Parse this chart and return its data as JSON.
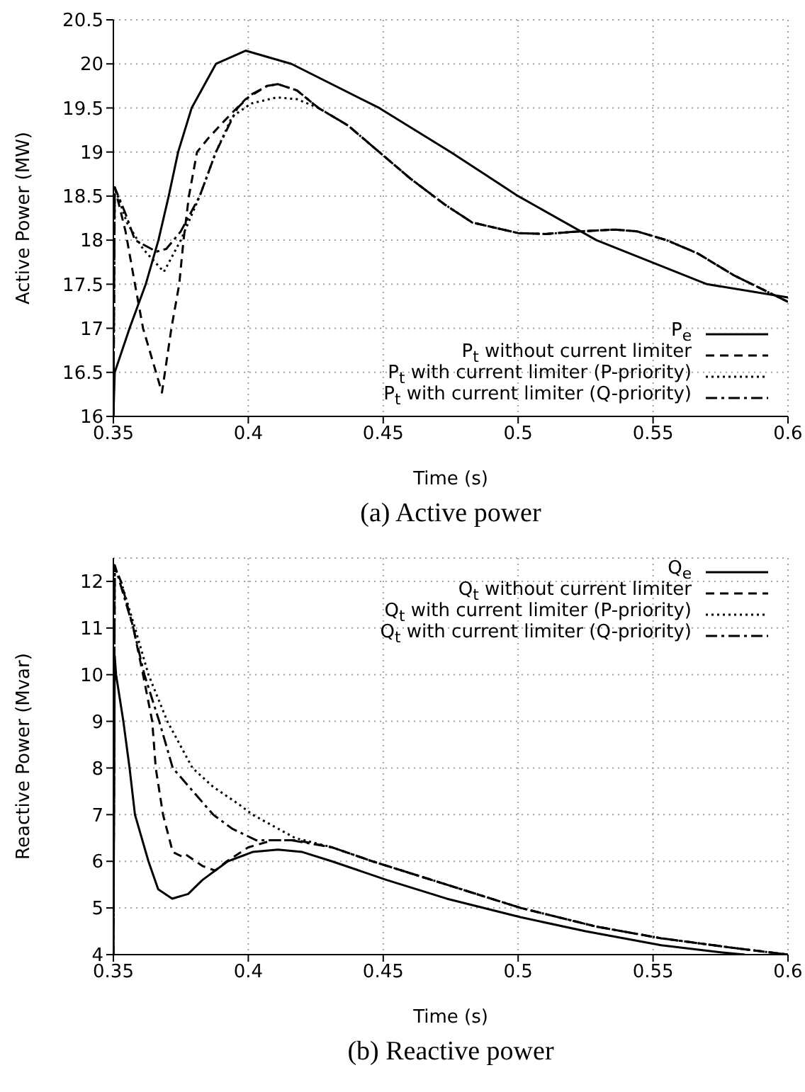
{
  "chart_data": [
    {
      "type": "line",
      "title": "(a) Active power",
      "xlabel": "Time (s)",
      "ylabel": "Active Power (MW)",
      "xlim": [
        0.35,
        0.6
      ],
      "xticks": [
        0.35,
        0.4,
        0.45,
        0.5,
        0.55,
        0.6
      ],
      "ylim": [
        16,
        20.5
      ],
      "yticks": [
        16,
        16.5,
        17,
        17.5,
        18,
        18.5,
        19,
        19.5,
        20,
        20.5
      ],
      "grid": true,
      "legend": "bottom right",
      "marker": "none",
      "series": [
        {
          "name": "P$_{e}$",
          "color": "#000000",
          "line_style": "solid",
          "x": [
            0.35,
            0.3505,
            0.356,
            0.362,
            0.3667,
            0.3705,
            0.374,
            0.379,
            0.388,
            0.399,
            0.416,
            0.4485,
            0.475,
            0.5,
            0.529,
            0.57,
            0.6
          ],
          "values": [
            16,
            16.5,
            17,
            17.5,
            18,
            18.5,
            19,
            19.5,
            20,
            20.15,
            20,
            19.5,
            19,
            18.5,
            18,
            17.5,
            17.35
          ]
        },
        {
          "name": "P$_{t}$ without current limiter",
          "color": "#000000",
          "line_style": "dashed",
          "x": [
            0.35,
            0.3505,
            0.3545,
            0.358,
            0.361,
            0.368,
            0.3715,
            0.3744,
            0.376,
            0.378,
            0.381,
            0.385,
            0.391,
            0.399,
            0.407,
            0.411,
            0.418,
            0.426,
            0.437,
            0.4485,
            0.46,
            0.473,
            0.483,
            0.5,
            0.51,
            0.523,
            0.536,
            0.544,
            0.555,
            0.5665,
            0.58,
            0.6
          ],
          "values": [
            16,
            18.6,
            18.1,
            17.5,
            17,
            16.27,
            17,
            17.5,
            18,
            18.5,
            19,
            19.15,
            19.35,
            19.6,
            19.75,
            19.77,
            19.7,
            19.5,
            19.3,
            19,
            18.7,
            18.4,
            18.2,
            18.08,
            18.07,
            18.1,
            18.12,
            18.1,
            18,
            17.85,
            17.6,
            17.3
          ]
        },
        {
          "name": "P$_{t}$ with current limiter (P-priority)",
          "color": "#000000",
          "line_style": "dotted",
          "x": [
            0.35,
            0.3505,
            0.355,
            0.361,
            0.3687,
            0.375,
            0.382,
            0.388,
            0.394,
            0.401,
            0.4105,
            0.418,
            0.426,
            0.437,
            0.4485,
            0.46,
            0.473,
            0.483,
            0.5,
            0.51,
            0.523,
            0.536,
            0.544,
            0.555,
            0.5665,
            0.58,
            0.6
          ],
          "values": [
            16,
            18.6,
            18.2,
            17.9,
            17.64,
            18,
            18.5,
            19,
            19.4,
            19.55,
            19.62,
            19.6,
            19.5,
            19.3,
            19,
            18.7,
            18.4,
            18.2,
            18.08,
            18.07,
            18.1,
            18.12,
            18.1,
            18,
            17.85,
            17.6,
            17.3
          ]
        },
        {
          "name": "P$_{t}$ with current limiter (Q-priority)",
          "color": "#000000",
          "line_style": "dashdot",
          "x": [
            0.35,
            0.3505,
            0.3545,
            0.358,
            0.366,
            0.3696,
            0.375,
            0.382,
            0.388,
            0.396,
            0.401,
            0.407,
            0.411,
            0.418,
            0.426,
            0.437,
            0.4485,
            0.46,
            0.473,
            0.483,
            0.5,
            0.51,
            0.523,
            0.536,
            0.544,
            0.555,
            0.5665,
            0.58,
            0.6
          ],
          "values": [
            16,
            18.6,
            18.3,
            18,
            17.87,
            17.9,
            18.1,
            18.5,
            19,
            19.5,
            19.65,
            19.75,
            19.77,
            19.7,
            19.5,
            19.3,
            19,
            18.7,
            18.4,
            18.2,
            18.08,
            18.07,
            18.1,
            18.12,
            18.1,
            18,
            17.85,
            17.6,
            17.3
          ]
        }
      ]
    },
    {
      "type": "line",
      "title": "(b) Reactive power",
      "xlabel": "Time (s)",
      "ylabel": "Reactive Power (Mvar)",
      "xlim": [
        0.35,
        0.6
      ],
      "xticks": [
        0.35,
        0.4,
        0.45,
        0.5,
        0.55,
        0.6
      ],
      "ylim": [
        4,
        12.5
      ],
      "yticks": [
        4,
        5,
        6,
        7,
        8,
        9,
        10,
        11,
        12
      ],
      "grid": true,
      "legend": "top right",
      "marker": "none",
      "series": [
        {
          "name": "Q$_{e}$",
          "color": "#000000",
          "line_style": "solid",
          "x": [
            0.35,
            0.3505,
            0.351,
            0.3537,
            0.356,
            0.358,
            0.363,
            0.3666,
            0.3718,
            0.3777,
            0.383,
            0.3924,
            0.4016,
            0.411,
            0.42,
            0.431,
            0.4513,
            0.4735,
            0.501,
            0.525,
            0.553,
            0.575,
            0.584
          ],
          "values": [
            4,
            10.4,
            10,
            9,
            8,
            7,
            6,
            5.4,
            5.2,
            5.3,
            5.6,
            6,
            6.2,
            6.25,
            6.2,
            6,
            5.6,
            5.2,
            4.8,
            4.5,
            4.2,
            4.05,
            4
          ]
        },
        {
          "name": "Q$_{t}$ without current limiter",
          "color": "#000000",
          "line_style": "dashed",
          "x": [
            0.35,
            0.3505,
            0.3528,
            0.3574,
            0.361,
            0.3644,
            0.3657,
            0.3684,
            0.372,
            0.3755,
            0.3767,
            0.383,
            0.3877,
            0.392,
            0.4,
            0.409,
            0.418,
            0.431,
            0.446,
            0.468,
            0.501,
            0.529,
            0.553,
            0.579,
            0.6
          ],
          "values": [
            4,
            12.3,
            12,
            11,
            10,
            9,
            8,
            7,
            6.2,
            6.1,
            6.15,
            5.9,
            5.8,
            6,
            6.3,
            6.45,
            6.45,
            6.3,
            6,
            5.6,
            5,
            4.6,
            4.35,
            4.15,
            4
          ]
        },
        {
          "name": "Q$_{t}$ with current limiter (P-priority)",
          "color": "#000000",
          "line_style": "dotted",
          "x": [
            0.35,
            0.3505,
            0.3528,
            0.358,
            0.363,
            0.37,
            0.3793,
            0.3869,
            0.397,
            0.4016,
            0.4173,
            0.431,
            0.446,
            0.468,
            0.501,
            0.529,
            0.553,
            0.579,
            0.6
          ],
          "values": [
            4,
            12.3,
            12,
            11,
            10,
            9,
            8,
            7.6,
            7.2,
            7,
            6.5,
            6.3,
            6,
            5.6,
            5,
            4.6,
            4.35,
            4.15,
            4
          ]
        },
        {
          "name": "Q$_{t}$ with current limiter (Q-priority)",
          "color": "#000000",
          "line_style": "dashdot",
          "x": [
            0.35,
            0.3505,
            0.3574,
            0.3615,
            0.367,
            0.372,
            0.381,
            0.387,
            0.394,
            0.403,
            0.416,
            0.431,
            0.446,
            0.468,
            0.501,
            0.529,
            0.553,
            0.579,
            0.6
          ],
          "values": [
            4,
            12.35,
            11,
            10,
            9,
            8,
            7.4,
            7,
            6.7,
            6.45,
            6.45,
            6.3,
            6,
            5.6,
            5,
            4.6,
            4.35,
            4.15,
            4
          ]
        }
      ]
    }
  ]
}
